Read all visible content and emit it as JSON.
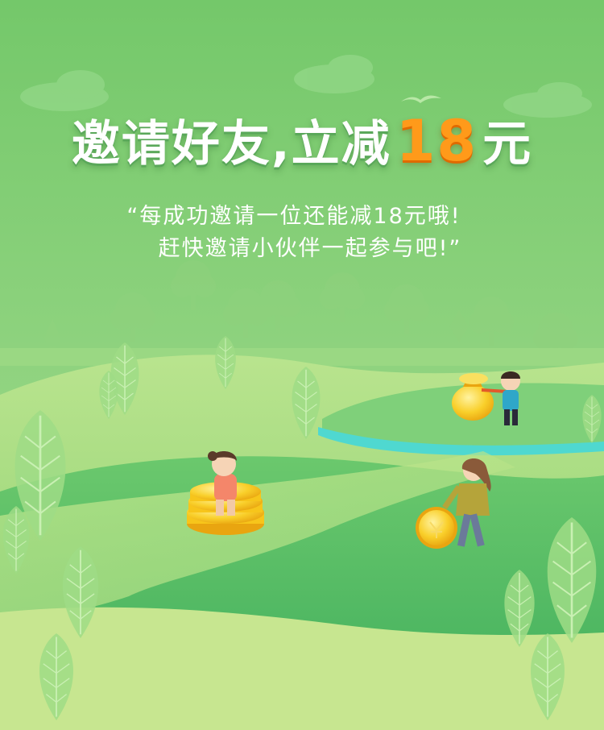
{
  "headline": {
    "prefix": "邀请好友,立减",
    "amount": "18",
    "suffix": "元"
  },
  "quote": {
    "line1": "“每成功邀请一位还能减18元哦!",
    "line2": "赶快邀请小伙伴一起参与吧!”"
  },
  "colors": {
    "sky": "#7ccb72",
    "accent_amount": "#ff9a1a",
    "river": "#4fd8d0",
    "coin": "#f7c51b"
  },
  "illustration": {
    "figures": [
      "girl-sitting-on-coins",
      "boy-carrying-money-bag",
      "woman-rolling-coin"
    ],
    "icons": [
      "coin-stack-icon",
      "money-bag-icon",
      "coin-icon",
      "bird-icon",
      "cloud-icon",
      "tree-icon",
      "leaf-bush-icon"
    ]
  }
}
